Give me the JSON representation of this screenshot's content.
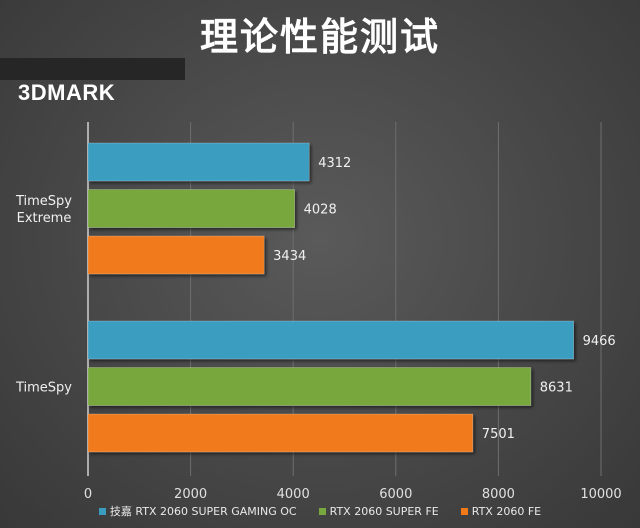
{
  "page": {
    "title": "理论性能测试",
    "subtitle": "3DMARK"
  },
  "chart_data": {
    "type": "bar",
    "orientation": "horizontal",
    "title": "理论性能测试",
    "subtitle": "3DMARK",
    "categories": [
      "TimeSpy Extreme",
      "TimeSpy"
    ],
    "category_lines": [
      [
        "TimeSpy",
        "Extreme"
      ],
      [
        "TimeSpy"
      ]
    ],
    "series": [
      {
        "name": "技嘉 RTX 2060 SUPER GAMING OC",
        "color": "#3a9dc0",
        "values": [
          4312,
          9466
        ]
      },
      {
        "name": "RTX 2060 SUPER FE",
        "color": "#78a83e",
        "values": [
          4028,
          8631
        ]
      },
      {
        "name": "RTX 2060 FE",
        "color": "#f07a1a",
        "values": [
          3434,
          7501
        ]
      }
    ],
    "xlim": [
      0,
      10000
    ],
    "xticks": [
      0,
      2000,
      4000,
      6000,
      8000,
      10000
    ],
    "grid": true,
    "legend_position": "bottom",
    "data_labels": true
  }
}
